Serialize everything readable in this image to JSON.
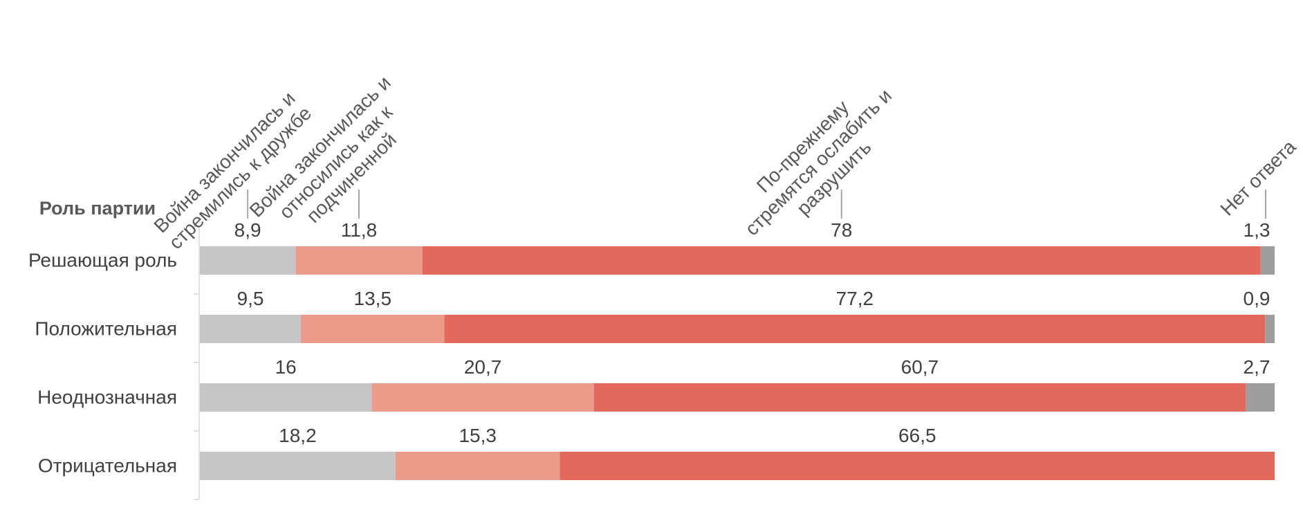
{
  "chart_data": {
    "type": "bar",
    "orientation": "horizontal",
    "stacked": true,
    "normalized_percent": true,
    "y_axis_title": "Роль партии",
    "categories": [
      "Решающая роль",
      "Положительная",
      "Неоднозначная",
      "Отрицательная"
    ],
    "series": [
      {
        "name": "Война закончилась и стремились к дружбе",
        "name_lines": [
          "Война закончилась и",
          "стремились к дружбе"
        ],
        "color": "#C5C6C5",
        "values": [
          8.9,
          9.5,
          16,
          18.2
        ],
        "labels": [
          "8,9",
          "9,5",
          "16",
          "18,2"
        ]
      },
      {
        "name": "Война закончилась и относились как к подчиненной",
        "name_lines": [
          "Война закончилась и",
          "относились как к",
          "подчиненной"
        ],
        "color": "#EC9A89",
        "values": [
          11.8,
          13.5,
          20.7,
          15.3
        ],
        "labels": [
          "11,8",
          "13,5",
          "20,7",
          "15,3"
        ]
      },
      {
        "name": "По-прежнему стремятся ослабить и разрушить",
        "name_lines": [
          "По-прежнему",
          "стремятся ослабить и",
          "разрушить"
        ],
        "color": "#E3695D",
        "values": [
          78,
          77.2,
          60.7,
          66.5
        ],
        "labels": [
          "78",
          "77,2",
          "60,7",
          "66,5"
        ]
      },
      {
        "name": "Нет ответа",
        "name_lines": [
          "Нет ответа"
        ],
        "color": "#9E9E9E",
        "values": [
          1.3,
          0.9,
          2.7,
          0
        ],
        "labels": [
          "1,3",
          "0,9",
          "2,7",
          ""
        ]
      }
    ],
    "legend_position": "top, rotated labels",
    "grid": false
  }
}
